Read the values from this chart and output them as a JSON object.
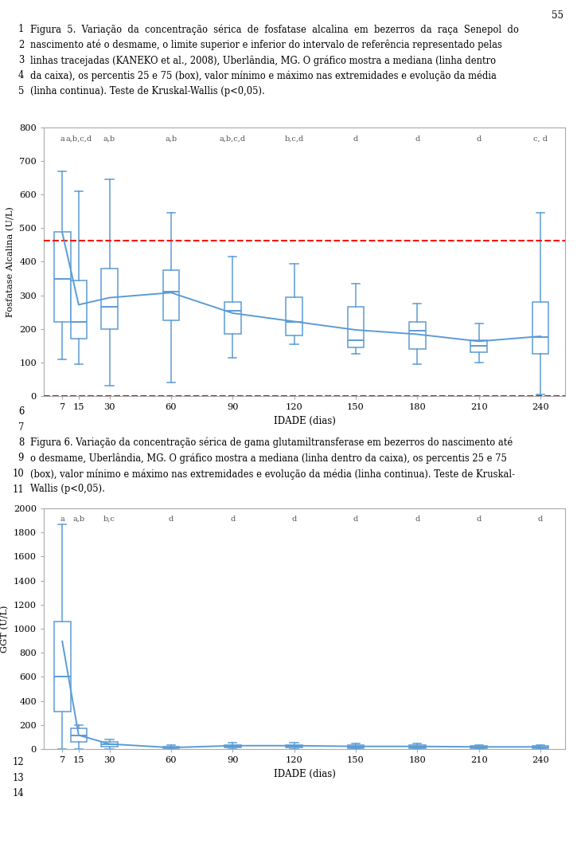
{
  "fig_width": 7.3,
  "fig_height": 10.78,
  "dpi": 100,
  "page_num": "55",
  "text_lines_top": [
    {
      "num": "1",
      "text": "Figura  5.  Variação  da  concentração  sérica  de  fosfatase  alcalina  em  bezerros  da  raça  Senepol  do"
    },
    {
      "num": "2",
      "text": "nascimento até o desmame, o limite superior e inferior do intervalo de referência representado pelas"
    },
    {
      "num": "3",
      "text": "linhas tracejadas (KANEKO et al., 2008), Uberlândia, MG. O gráfico mostra a mediana (linha dentro"
    },
    {
      "num": "4",
      "text": "da caixa), os percentis 25 e 75 (box), valor mínimo e máximo nas extremidades e evolução da média"
    },
    {
      "num": "5",
      "text": "(linha continua). Teste de Kruskal-Wallis (p<0,05)."
    }
  ],
  "text_lines_mid": [
    {
      "num": "6",
      "text": ""
    },
    {
      "num": "7",
      "text": ""
    },
    {
      "num": "8",
      "text": "Figura 6. Variação da concentração sérica de gama glutamiltransferase em bezerros do nascimento até"
    },
    {
      "num": "9",
      "text": "o desmame, Uberlândia, MG. O gráfico mostra a mediana (linha dentro da caixa), os percentis 25 e 75"
    },
    {
      "num": "10",
      "text": "(box), valor mínimo e máximo nas extremidades e evolução da média (linha continua). Teste de Kruskal-"
    },
    {
      "num": "11",
      "text": "Wallis (p<0,05)."
    }
  ],
  "text_lines_bot": [
    {
      "num": "12",
      "text": ""
    },
    {
      "num": "13",
      "text": ""
    },
    {
      "num": "14",
      "text": ""
    }
  ],
  "plot1": {
    "x_positions": [
      7,
      15,
      30,
      60,
      90,
      120,
      150,
      180,
      210,
      240
    ],
    "x_labels": [
      "7",
      "15",
      "30",
      "60",
      "90",
      "120",
      "150",
      "180",
      "210",
      "240"
    ],
    "ylabel": "Fosfatase Alcalina (U/L)",
    "xlabel": "IDADE (dias)",
    "ylim": [
      0,
      800
    ],
    "yticks": [
      0,
      100,
      200,
      300,
      400,
      500,
      600,
      700,
      800
    ],
    "ref_upper": 462,
    "ref_lower": 0,
    "box_color": "#5B9BD5",
    "line_color": "#5B9BD5",
    "ref_color": "#FF0000",
    "stat_labels": [
      "a",
      "a,b,c,d",
      "a,b",
      "a,b",
      "a,b,c,d",
      "b,c,d",
      "d",
      "d",
      "d",
      "c, d"
    ],
    "boxes": [
      {
        "whislo": 110,
        "q1": 220,
        "med": 350,
        "q3": 490,
        "whishi": 670
      },
      {
        "whislo": 95,
        "q1": 170,
        "med": 220,
        "q3": 345,
        "whishi": 610
      },
      {
        "whislo": 30,
        "q1": 200,
        "med": 265,
        "q3": 380,
        "whishi": 645
      },
      {
        "whislo": 40,
        "q1": 225,
        "med": 310,
        "q3": 375,
        "whishi": 545
      },
      {
        "whislo": 115,
        "q1": 185,
        "med": 255,
        "q3": 280,
        "whishi": 415
      },
      {
        "whislo": 155,
        "q1": 180,
        "med": 220,
        "q3": 295,
        "whishi": 395
      },
      {
        "whislo": 125,
        "q1": 145,
        "med": 165,
        "q3": 265,
        "whishi": 335
      },
      {
        "whislo": 95,
        "q1": 140,
        "med": 195,
        "q3": 220,
        "whishi": 275
      },
      {
        "whislo": 100,
        "q1": 130,
        "med": 150,
        "q3": 165,
        "whishi": 215
      },
      {
        "whislo": 5,
        "q1": 125,
        "med": 175,
        "q3": 280,
        "whishi": 545
      }
    ],
    "means": [
      487,
      272,
      293,
      308,
      247,
      222,
      197,
      184,
      163,
      178
    ]
  },
  "plot2": {
    "x_positions": [
      7,
      15,
      30,
      60,
      90,
      120,
      150,
      180,
      210,
      240
    ],
    "x_labels": [
      "7",
      "15",
      "30",
      "60",
      "90",
      "120",
      "150",
      "180",
      "210",
      "240"
    ],
    "ylabel": "GGT (U/L)",
    "xlabel": "IDADE (dias)",
    "ylim": [
      0,
      2000
    ],
    "yticks": [
      0,
      200,
      400,
      600,
      800,
      1000,
      1200,
      1400,
      1600,
      1800,
      2000
    ],
    "box_color": "#5B9BD5",
    "line_color": "#5B9BD5",
    "stat_labels": [
      "a",
      "a,b",
      "b,c",
      "d",
      "d",
      "d",
      "d",
      "d",
      "d",
      "d"
    ],
    "boxes": [
      {
        "whislo": 0,
        "q1": 310,
        "med": 600,
        "q3": 1060,
        "whishi": 1870
      },
      {
        "whislo": 0,
        "q1": 60,
        "med": 115,
        "q3": 175,
        "whishi": 200
      },
      {
        "whislo": 0,
        "q1": 20,
        "med": 40,
        "q3": 60,
        "whishi": 80
      },
      {
        "whislo": 0,
        "q1": 5,
        "med": 10,
        "q3": 20,
        "whishi": 30
      },
      {
        "whislo": 0,
        "q1": 10,
        "med": 20,
        "q3": 35,
        "whishi": 50
      },
      {
        "whislo": 0,
        "q1": 10,
        "med": 20,
        "q3": 35,
        "whishi": 50
      },
      {
        "whislo": 0,
        "q1": 5,
        "med": 15,
        "q3": 30,
        "whishi": 45
      },
      {
        "whislo": 0,
        "q1": 5,
        "med": 15,
        "q3": 30,
        "whishi": 45
      },
      {
        "whislo": 0,
        "q1": 5,
        "med": 15,
        "q3": 25,
        "whishi": 35
      },
      {
        "whislo": 0,
        "q1": 5,
        "med": 15,
        "q3": 25,
        "whishi": 35
      }
    ],
    "means": [
      895,
      115,
      42,
      12,
      28,
      28,
      22,
      22,
      18,
      18
    ]
  }
}
